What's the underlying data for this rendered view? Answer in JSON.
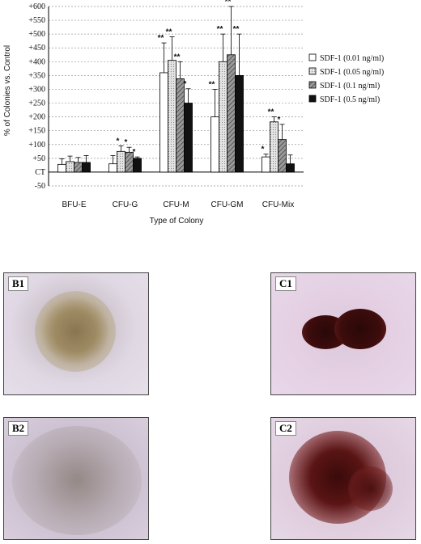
{
  "chart_data": {
    "type": "bar",
    "ylabel": "% of Colonies vs. Control",
    "xlabel": "Type of Colony",
    "categories": [
      "BFU-E",
      "CFU-G",
      "CFU-M",
      "CFU-GM",
      "CFU-Mix"
    ],
    "y_ticks": [
      "+600",
      "+550",
      "+500",
      "+450",
      "+400",
      "+350",
      "+300",
      "+250",
      "+200",
      "+150",
      "+100",
      "+50",
      "CT",
      "-50"
    ],
    "ylim": [
      -50,
      600
    ],
    "grid": "dashed horizontal",
    "legend_position": "right",
    "series": [
      {
        "name": "SDF-1 (0.01 ng/ml)",
        "color": "#ffffff",
        "pattern": "none",
        "values": [
          28,
          30,
          360,
          200,
          55
        ],
        "errors": [
          20,
          30,
          108,
          100,
          10
        ],
        "stars": [
          "",
          "",
          "**",
          "**",
          "*"
        ]
      },
      {
        "name": "SDF-1 (0.05 ng/ml)",
        "color": "#d8d8d8",
        "pattern": "dots",
        "values": [
          38,
          75,
          405,
          400,
          182
        ],
        "errors": [
          20,
          20,
          85,
          100,
          18
        ],
        "stars": [
          "",
          "*",
          "**",
          "**",
          "**"
        ]
      },
      {
        "name": "SDF-1 (0.1 ng/ml)",
        "color": "#888888",
        "pattern": "hatch",
        "values": [
          35,
          72,
          338,
          425,
          118
        ],
        "errors": [
          18,
          18,
          62,
          175,
          55
        ],
        "stars": [
          "",
          "*",
          "**",
          "**",
          "*"
        ]
      },
      {
        "name": "SDF-1 (0.5 ng/ml)",
        "color": "#111111",
        "pattern": "none",
        "values": [
          35,
          50,
          250,
          350,
          30
        ],
        "errors": [
          25,
          5,
          52,
          150,
          32
        ],
        "stars": [
          "",
          "*",
          "*",
          "**",
          ""
        ]
      }
    ]
  },
  "panels": [
    {
      "label": "B1"
    },
    {
      "label": "C1"
    },
    {
      "label": "B2"
    },
    {
      "label": "C2"
    }
  ]
}
